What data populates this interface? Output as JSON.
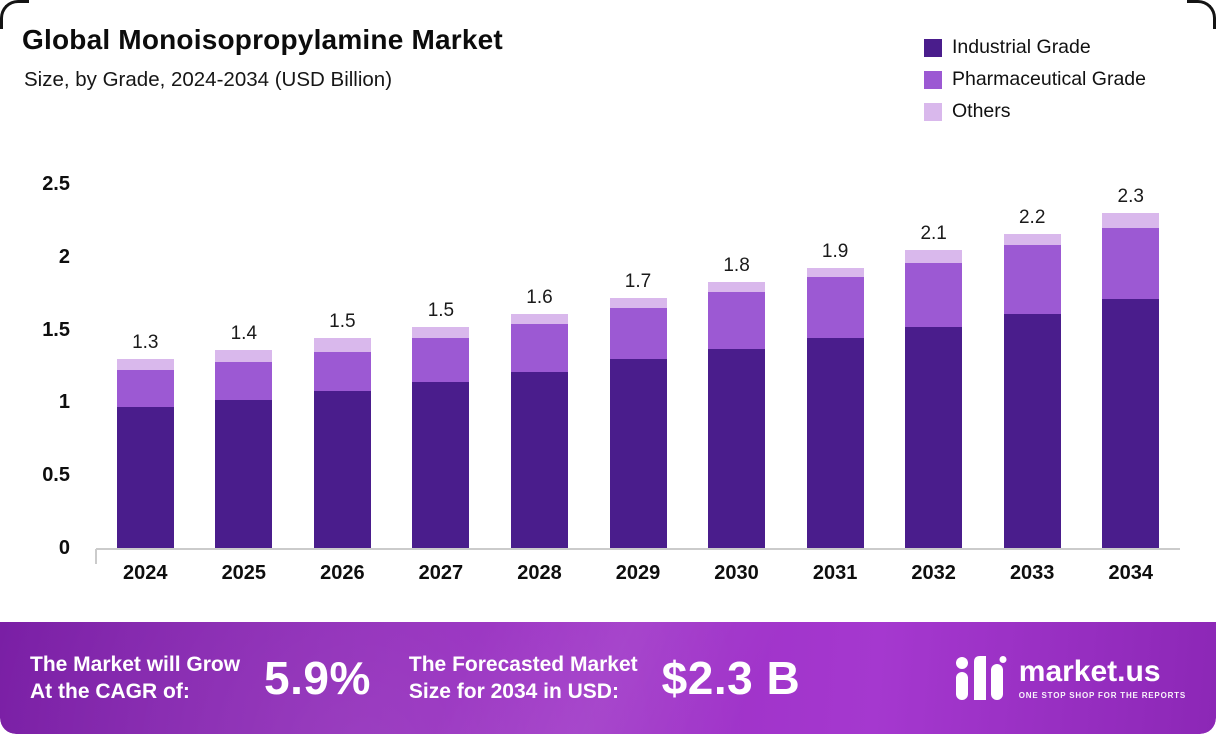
{
  "header": {
    "title": "Global Monoisopropylamine Market",
    "subtitle": "Size, by Grade, 2024-2034 (USD Billion)"
  },
  "chart_data": {
    "type": "bar",
    "stacked": true,
    "title": "Global Monoisopropylamine Market Size, by Grade, 2024-2034 (USD Billion)",
    "categories": [
      "2024",
      "2025",
      "2026",
      "2027",
      "2028",
      "2029",
      "2030",
      "2031",
      "2032",
      "2033",
      "2034"
    ],
    "series": [
      {
        "name": "Industrial Grade",
        "color": "#4a1d8c",
        "values": [
          0.97,
          1.02,
          1.08,
          1.14,
          1.21,
          1.3,
          1.37,
          1.44,
          1.52,
          1.61,
          1.71
        ]
      },
      {
        "name": "Pharmaceutical Grade",
        "color": "#9c59d3",
        "values": [
          0.25,
          0.26,
          0.27,
          0.3,
          0.33,
          0.35,
          0.39,
          0.42,
          0.44,
          0.47,
          0.49
        ]
      },
      {
        "name": "Others",
        "color": "#d9b8ec",
        "values": [
          0.08,
          0.08,
          0.09,
          0.08,
          0.07,
          0.07,
          0.07,
          0.06,
          0.09,
          0.08,
          0.1
        ]
      }
    ],
    "totals_labels": [
      "1.3",
      "1.4",
      "1.5",
      "1.5",
      "1.6",
      "1.7",
      "1.8",
      "1.9",
      "2.1",
      "2.2",
      "2.3"
    ],
    "y_ticks": [
      {
        "label": "0",
        "value": 0
      },
      {
        "label": "0.5",
        "value": 0.5
      },
      {
        "label": "1",
        "value": 1
      },
      {
        "label": "1.5",
        "value": 1.5
      },
      {
        "label": "2",
        "value": 2
      },
      {
        "label": "2.5",
        "value": 2.5
      }
    ],
    "ylim": [
      0,
      2.5
    ],
    "xlabel": "",
    "ylabel": "",
    "grid": false,
    "legend_position": "top-right"
  },
  "footer": {
    "cagr_label_line1": "The Market will Grow",
    "cagr_label_line2": "At the CAGR of:",
    "cagr_value": "5.9%",
    "forecast_label_line1": "The Forecasted Market",
    "forecast_label_line2": "Size for 2034 in USD:",
    "forecast_value": "$2.3 B",
    "brand_name": "market.us",
    "brand_tagline": "One Stop Shop For The Reports"
  }
}
